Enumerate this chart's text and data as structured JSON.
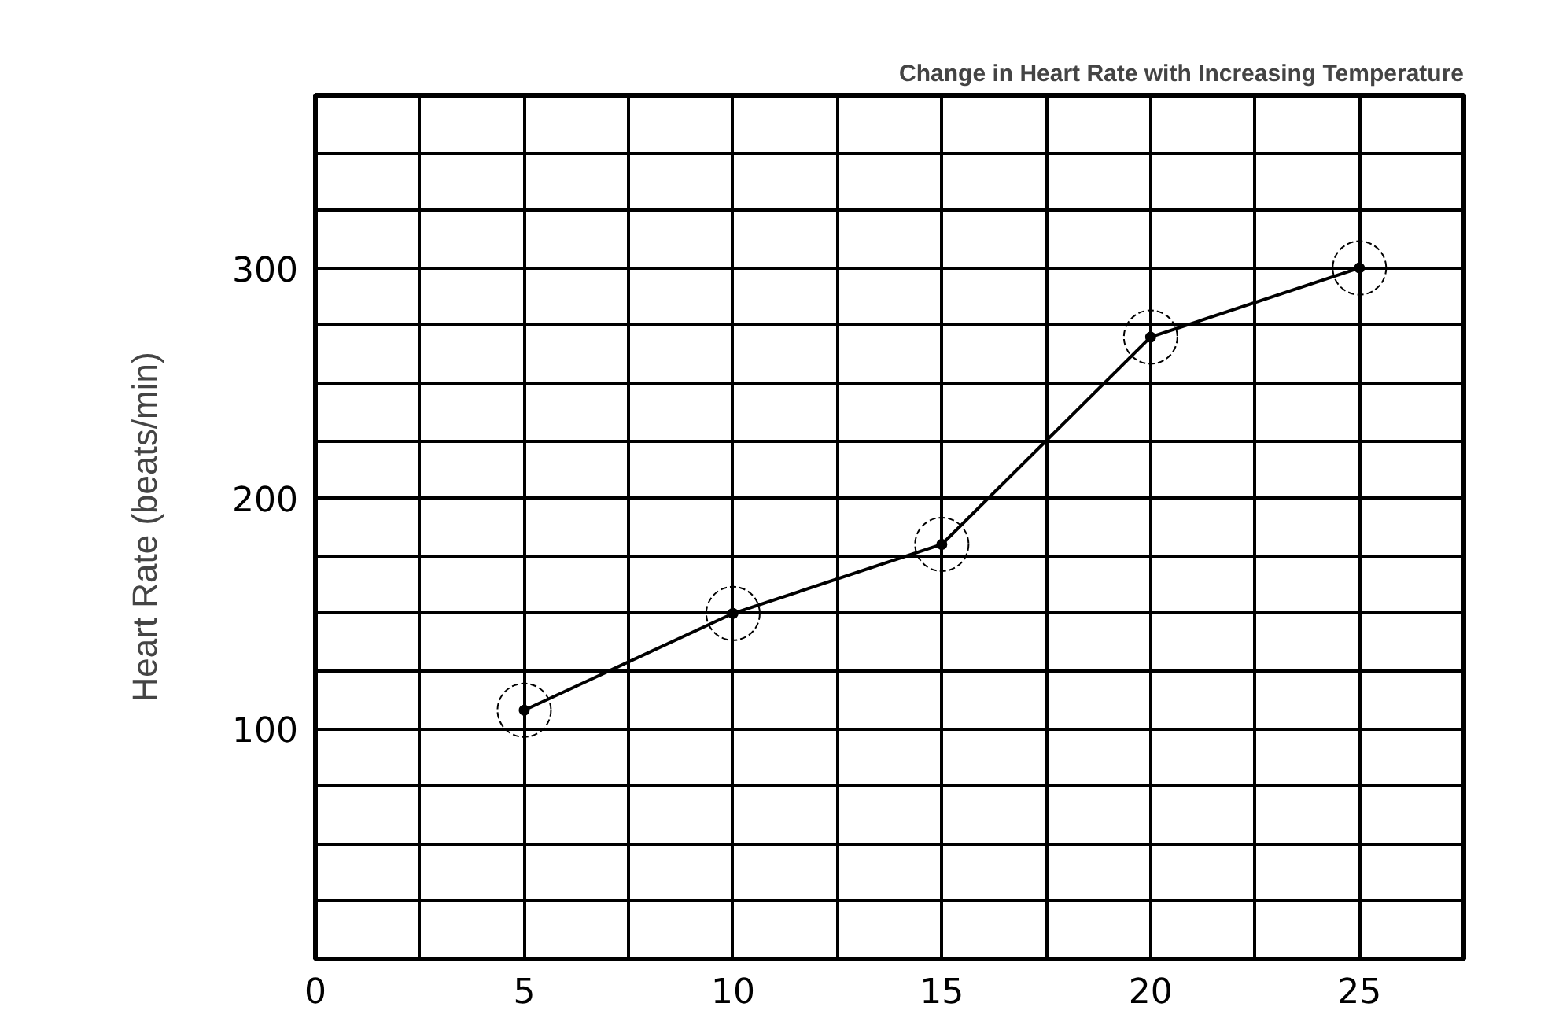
{
  "chart_data": {
    "type": "line",
    "title": "Change in Heart Rate with Increasing Temperature",
    "ylabel": "Heart Rate (beats/min)",
    "x": [
      5,
      10,
      15,
      20,
      25
    ],
    "series": [
      {
        "color": "#000000",
        "values": [
          108,
          150,
          180,
          270,
          300
        ]
      }
    ],
    "xlim": [
      0,
      27.5
    ],
    "ylim": [
      0,
      375
    ],
    "xticks": [
      0,
      {
        "value": 2.5,
        "label": null
      },
      5,
      {
        "value": 7.5,
        "label": null
      },
      10,
      {
        "value": 12.5,
        "label": null
      },
      15,
      {
        "value": 17.5,
        "label": null
      },
      20,
      {
        "value": 22.5,
        "label": null
      },
      25
    ],
    "yticks": [
      {
        "value": 25,
        "label": null
      },
      {
        "value": 50,
        "label": null
      },
      {
        "value": 75,
        "label": null
      },
      100,
      {
        "value": 125,
        "label": null
      },
      {
        "value": 150,
        "label": null
      },
      {
        "value": 175,
        "label": null
      },
      200,
      {
        "value": 225,
        "label": null
      },
      {
        "value": 250,
        "label": null
      },
      {
        "value": 275,
        "label": null
      },
      300,
      {
        "value": 325,
        "label": null
      },
      {
        "value": 350,
        "label": null
      }
    ],
    "grid": true,
    "marker": "circle",
    "line_style": "solid"
  }
}
